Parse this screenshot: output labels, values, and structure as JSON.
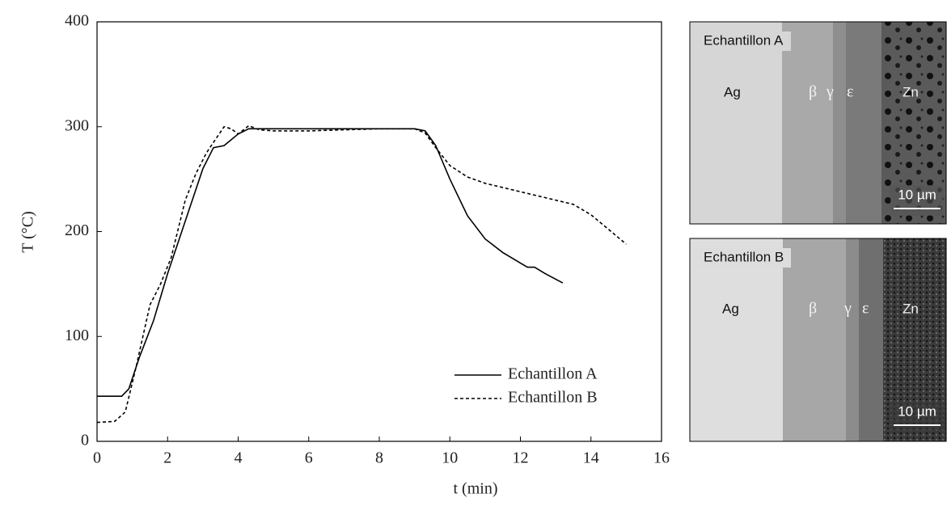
{
  "chart_data": {
    "type": "line",
    "x_label": "t (min)",
    "y_label": "T (°C)",
    "xlim": [
      0,
      16
    ],
    "xticks": [
      0,
      2,
      4,
      6,
      8,
      10,
      12,
      14,
      16
    ],
    "ylim": [
      0,
      400
    ],
    "yticks": [
      0,
      100,
      200,
      300,
      400
    ],
    "grid": false,
    "legend": "lower right",
    "series": [
      {
        "name": "Echantillon A",
        "color": "#000000",
        "dash": "solid",
        "x": [
          0,
          0.7,
          0.9,
          1.2,
          1.6,
          2,
          2.5,
          3,
          3.3,
          3.6,
          4,
          4.3,
          5,
          6,
          7,
          8,
          9,
          9.3,
          9.6,
          10,
          10.5,
          11,
          11.5,
          12,
          12.2,
          12.4,
          12.7,
          13.2
        ],
        "values": [
          43,
          43,
          50,
          80,
          115,
          160,
          210,
          260,
          280,
          282,
          293,
          298,
          298,
          298,
          298,
          298,
          298,
          296,
          282,
          250,
          215,
          193,
          180,
          170,
          166,
          166,
          160,
          151
        ]
      },
      {
        "name": "Echantillon B",
        "color": "#000000",
        "dash": "dashed",
        "x": [
          0,
          0.5,
          0.8,
          1.1,
          1.5,
          1.8,
          2.1,
          2.5,
          2.8,
          3.1,
          3.4,
          3.6,
          3.8,
          4,
          4.3,
          4.6,
          5,
          6,
          7,
          8,
          9,
          9.3,
          9.6,
          10,
          10.5,
          11,
          12,
          13,
          13.5,
          14,
          14.5,
          15
        ],
        "values": [
          18,
          19,
          28,
          70,
          130,
          150,
          175,
          230,
          255,
          275,
          290,
          300,
          298,
          293,
          301,
          297,
          296,
          296,
          297,
          298,
          298,
          294,
          280,
          263,
          252,
          246,
          238,
          230,
          226,
          216,
          202,
          188
        ]
      }
    ]
  },
  "micrographs": [
    {
      "title": "Echantillon A",
      "labels": [
        "Ag",
        "β",
        "γ",
        "ε",
        "Zn"
      ],
      "scale": "10 µm"
    },
    {
      "title": "Echantillon B",
      "labels": [
        "Ag",
        "β",
        "γ",
        "ε",
        "Zn"
      ],
      "scale": "10 µm"
    }
  ]
}
